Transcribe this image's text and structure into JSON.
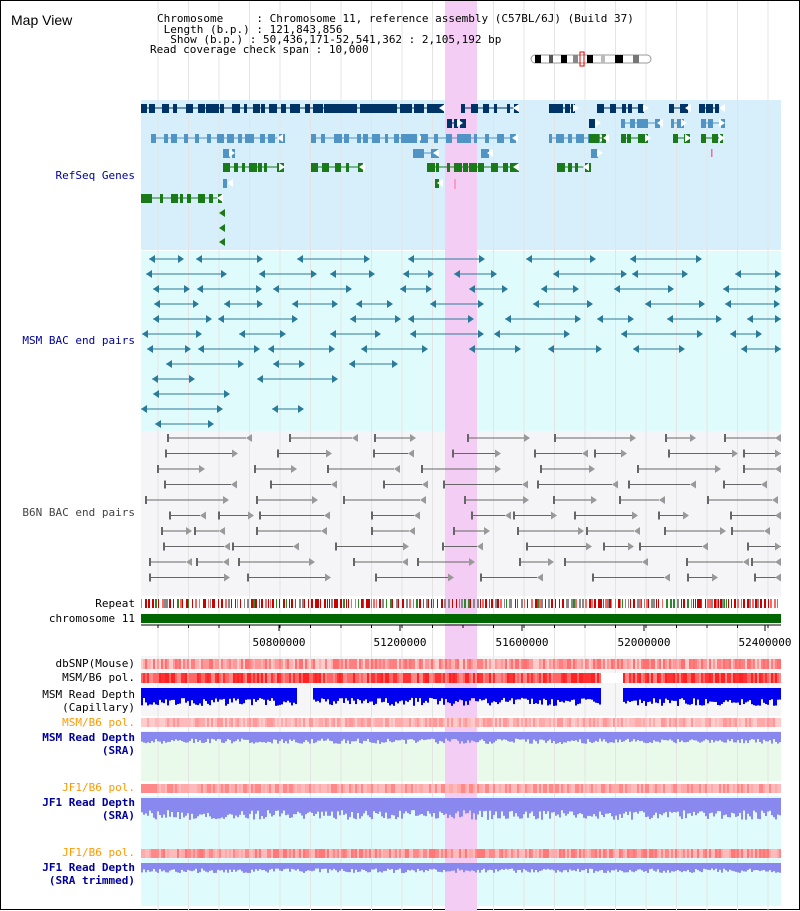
{
  "header": {
    "title": "Map View",
    "info": {
      "chromosome_key": "Chromosome",
      "chromosome_val": "Chromosome 11, reference assembly (C57BL/6J) (Build 37)",
      "length_key": "Length (b.p.)",
      "length_val": "121,843,856",
      "show_key": "Show (b.p.)",
      "show_val": "50,436,171-52,541,362 : 2,105,192 bp",
      "span_key": "Read coverage check span",
      "span_val": "10,000"
    }
  },
  "tracks": {
    "refseq": "RefSeq Genes",
    "msm_bac": "MSM BAC end pairs",
    "b6n_bac": "B6N BAC end pairs",
    "repeat": "Repeat",
    "chromosome": "chromosome 11",
    "dbsnp": "dbSNP(Mouse)",
    "msm_b6_pol_cap": "MSM/B6 pol.",
    "msm_depth_cap_1": "MSM Read Depth",
    "msm_depth_cap_2": "(Capillary)",
    "msm_b6_pol_sra": "MSM/B6 pol.",
    "msm_depth_sra_1": "MSM Read Depth",
    "msm_depth_sra_2": "(SRA)",
    "jf1_b6_pol_1": "JF1/B6 pol.",
    "jf1_depth_sra_1": "JF1 Read Depth",
    "jf1_depth_sra_2": "(SRA)",
    "jf1_b6_pol_2": "JF1/B6 pol.",
    "jf1_depth_trim_1": "JF1 Read Depth",
    "jf1_depth_trim_2": "(SRA trimmed)"
  },
  "axis": {
    "ticks": [
      "50800000",
      "51200000",
      "51600000",
      "52000000",
      "52400000"
    ]
  },
  "colors": {
    "refseq_bg": "#d6effa",
    "bac_bg": "#e0fbfb",
    "b6n_bg": "#f5f5f8",
    "highlight": "#f4cdf4",
    "chrom_bar": "#006600",
    "label_blue": "#000099",
    "label_orange": "#ff9900",
    "label_black": "#000000",
    "refseq_dark": "#003366",
    "refseq_mid": "#4f94c4",
    "refseq_green": "#1a7a1a",
    "msm_line": "#2a7a9a",
    "b6n_line": "#666666",
    "depth_blue": "#0000ee",
    "depth_light": "#8888ee"
  }
}
